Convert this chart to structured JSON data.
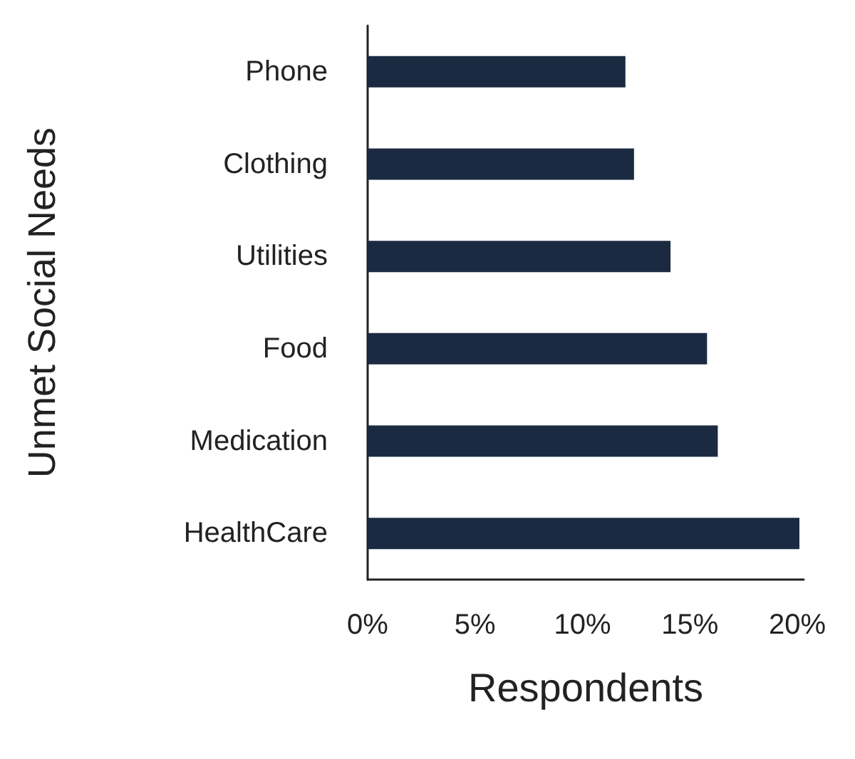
{
  "chart_data": {
    "type": "bar",
    "orientation": "horizontal",
    "xlabel": "Respondents",
    "ylabel": "Unmet Social Needs",
    "categories": [
      "Phone",
      "Clothing",
      "Utilities",
      "Food",
      "Medication",
      "HealthCare"
    ],
    "values": [
      12.0,
      12.4,
      14.1,
      15.8,
      16.3,
      20.1
    ],
    "color": "#1b2a41",
    "xlim": [
      0,
      20.3
    ],
    "xticks": [
      {
        "value": 0,
        "label": "0%"
      },
      {
        "value": 5,
        "label": "5%"
      },
      {
        "value": 10,
        "label": "10%"
      },
      {
        "value": 15,
        "label": "15%"
      },
      {
        "value": 20,
        "label": "20%"
      }
    ],
    "grid": false
  }
}
